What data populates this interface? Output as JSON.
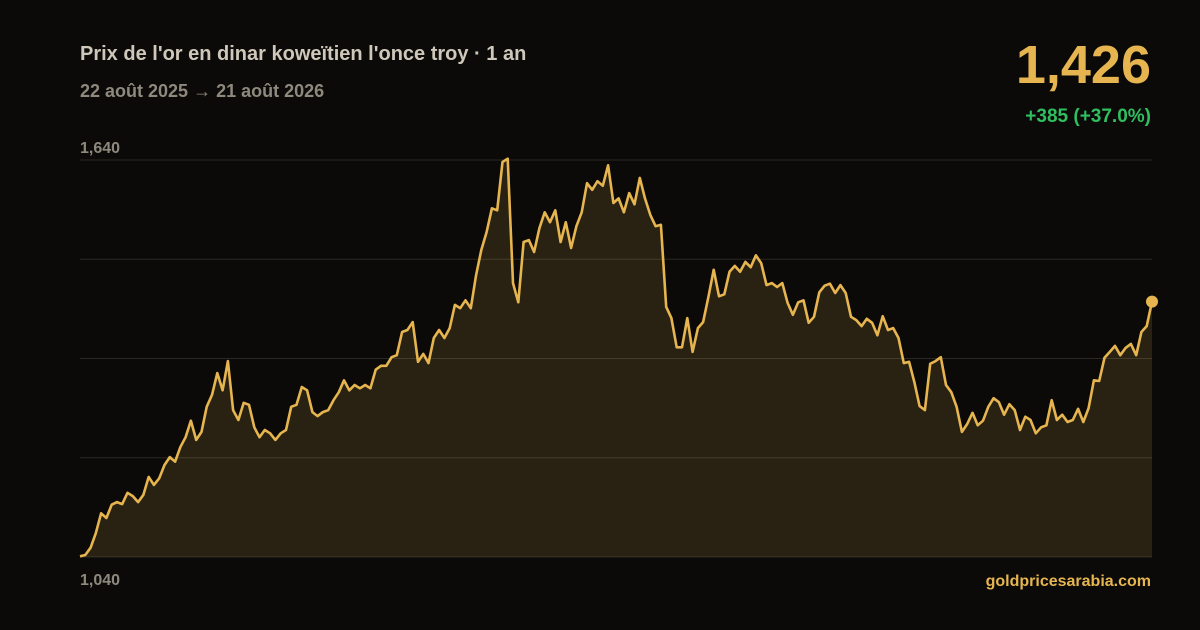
{
  "chart_data": {
    "type": "line",
    "title": "Prix de l'or en dinar koweïtien l'once troy · 1 an",
    "subtitle": "22 août 2025 → 21 août 2026",
    "price": "1,426",
    "change": "+385 (+37.0%)",
    "source": "goldpricesarabia.com",
    "color": "#e6b54f",
    "change_color": "#2fbf5f",
    "ylim": [
      1040,
      1640
    ],
    "yticks": [
      {
        "value": 1040,
        "label": "1,040"
      },
      {
        "value": 1640,
        "label": "1,640"
      }
    ],
    "grid": true,
    "grid_intervals": 4,
    "values": [
      1041,
      1043,
      1054,
      1076,
      1106,
      1099,
      1119,
      1123,
      1120,
      1137,
      1132,
      1123,
      1134,
      1161,
      1149,
      1159,
      1179,
      1191,
      1184,
      1206,
      1221,
      1246,
      1217,
      1229,
      1267,
      1285,
      1318,
      1292,
      1336,
      1262,
      1247,
      1273,
      1270,
      1236,
      1221,
      1232,
      1227,
      1217,
      1227,
      1232,
      1267,
      1270,
      1297,
      1292,
      1259,
      1253,
      1259,
      1262,
      1277,
      1289,
      1307,
      1292,
      1300,
      1295,
      1300,
      1295,
      1323,
      1329,
      1329,
      1342,
      1345,
      1380,
      1383,
      1395,
      1335,
      1347,
      1333,
      1371,
      1383,
      1371,
      1386,
      1421,
      1416,
      1428,
      1416,
      1466,
      1504,
      1531,
      1567,
      1564,
      1637,
      1642,
      1454,
      1425,
      1516,
      1519,
      1501,
      1537,
      1561,
      1546,
      1564,
      1516,
      1546,
      1507,
      1540,
      1561,
      1605,
      1595,
      1608,
      1601,
      1632,
      1575,
      1582,
      1561,
      1590,
      1573,
      1613,
      1582,
      1557,
      1540,
      1542,
      1418,
      1401,
      1357,
      1357,
      1401,
      1350,
      1386,
      1395,
      1433,
      1474,
      1434,
      1437,
      1471,
      1480,
      1471,
      1486,
      1478,
      1496,
      1484,
      1451,
      1454,
      1448,
      1454,
      1424,
      1406,
      1425,
      1428,
      1394,
      1403,
      1440,
      1450,
      1453,
      1439,
      1451,
      1439,
      1403,
      1398,
      1389,
      1400,
      1394,
      1375,
      1404,
      1383,
      1386,
      1371,
      1333,
      1335,
      1304,
      1268,
      1262,
      1332,
      1336,
      1342,
      1300,
      1289,
      1267,
      1229,
      1241,
      1258,
      1239,
      1246,
      1267,
      1280,
      1274,
      1255,
      1271,
      1262,
      1232,
      1252,
      1247,
      1227,
      1236,
      1239,
      1277,
      1247,
      1255,
      1244,
      1247,
      1264,
      1244,
      1265,
      1307,
      1306,
      1341,
      1350,
      1359,
      1345,
      1356,
      1362,
      1345,
      1380,
      1389,
      1426
    ]
  }
}
